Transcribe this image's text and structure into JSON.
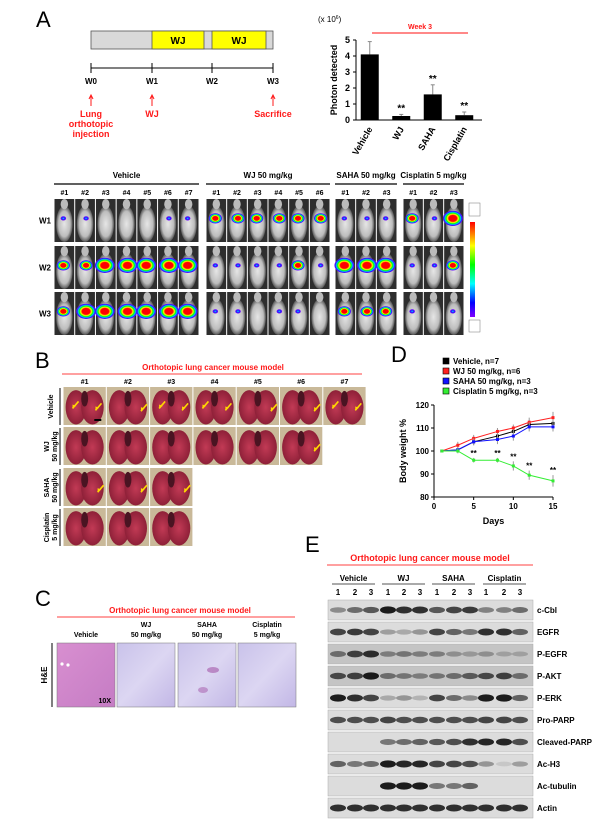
{
  "panel_labels": {
    "a": "A",
    "b": "B",
    "c": "C",
    "d": "D",
    "e": "E"
  },
  "panel_a": {
    "schedule": {
      "treatment_label": "WJ",
      "segments": [
        "WJ",
        "WJ"
      ]
    },
    "timeline": {
      "weeks": [
        "W0",
        "W1",
        "W2",
        "W3"
      ]
    },
    "events": [
      {
        "week": "W0",
        "label": "Lung\northotopic\ninjection"
      },
      {
        "week": "W1",
        "label": "WJ"
      },
      {
        "week": "W3",
        "label": "Sacrifice"
      }
    ],
    "imaging": {
      "groups": [
        {
          "name": "Vehicle",
          "mice": [
            "#1",
            "#2",
            "#3",
            "#4",
            "#5",
            "#6",
            "#7"
          ]
        },
        {
          "name": "WJ 50 mg/kg",
          "mice": [
            "#1",
            "#2",
            "#3",
            "#4",
            "#5",
            "#6"
          ]
        },
        {
          "name": "SAHA 50 mg/kg",
          "mice": [
            "#1",
            "#2",
            "#3"
          ]
        },
        {
          "name": "Cisplatin 5 mg/kg",
          "mice": [
            "#1",
            "#2",
            "#3"
          ]
        }
      ],
      "rows": [
        "W1",
        "W2",
        "W3"
      ],
      "signal_level_0_to_3": [
        [
          [
            1,
            1,
            0,
            0,
            0,
            1,
            1
          ],
          [
            2,
            2,
            2,
            2,
            2,
            2
          ],
          [
            1,
            1,
            1
          ],
          [
            2,
            1,
            3
          ]
        ],
        [
          [
            2,
            2,
            3,
            3,
            3,
            3,
            3
          ],
          [
            1,
            1,
            1,
            1,
            2,
            1
          ],
          [
            3,
            3,
            3
          ],
          [
            1,
            1,
            2
          ]
        ],
        [
          [
            2,
            3,
            3,
            3,
            3,
            3,
            3
          ],
          [
            1,
            1,
            0,
            1,
            1,
            0
          ],
          [
            2,
            2,
            2
          ],
          [
            1,
            0,
            1
          ]
        ]
      ],
      "colorbar_colors": [
        "#ff0000",
        "#ffff00",
        "#00ff00",
        "#00ffff",
        "#0000ff",
        "#8000ff"
      ]
    }
  },
  "chart_data": [
    {
      "type": "bar",
      "title": "Week 3",
      "unit_label": "(x 10",
      "unit_exp": "6",
      "unit_close": ")",
      "ylabel": "Photon detected",
      "xlabel": "",
      "categories": [
        "Vehicle",
        "WJ",
        "SAHA",
        "Cisplatin"
      ],
      "values": [
        4.1,
        0.25,
        1.6,
        0.3
      ],
      "errors": [
        0.8,
        0.1,
        0.6,
        0.2
      ],
      "significance": [
        "",
        "**",
        "**",
        "**"
      ],
      "ylim": [
        0,
        5
      ],
      "yticks": [
        "0",
        "1",
        "2",
        "3",
        "4",
        "5"
      ],
      "color": "#000000"
    },
    {
      "type": "line",
      "xlabel": "Days",
      "ylabel": "Body weight %",
      "xlim": [
        0,
        15
      ],
      "ylim": [
        80,
        120
      ],
      "xticks": [
        "0",
        "5",
        "10",
        "15"
      ],
      "yticks": [
        "80",
        "90",
        "100",
        "110",
        "120"
      ],
      "legend_position": "top-left",
      "x": [
        1,
        3,
        5,
        8,
        10,
        12,
        15
      ],
      "series": [
        {
          "name": "Vehicle, n=7",
          "color": "#000000",
          "values": [
            100,
            100.5,
            104,
            106.5,
            108.5,
            111.5,
            112
          ],
          "errors": [
            0,
            1,
            1.5,
            1.5,
            1.5,
            2,
            2
          ]
        },
        {
          "name": "WJ 50 mg/kg, n=6",
          "color": "#ff2020",
          "values": [
            100,
            102.5,
            105.5,
            108.5,
            110,
            112.5,
            114.5
          ],
          "errors": [
            0,
            1.5,
            1.5,
            1.5,
            1.5,
            2,
            2.5
          ]
        },
        {
          "name": "SAHA 50 mg/kg, n=3",
          "color": "#1010ff",
          "values": [
            100,
            100.5,
            104,
            105,
            106.5,
            110.5,
            110.5
          ],
          "errors": [
            0,
            1,
            1.5,
            2,
            2,
            2,
            2
          ]
        },
        {
          "name": "Cisplatin 5 mg/kg, n=3",
          "color": "#33ee33",
          "values": [
            100,
            100,
            96,
            96,
            93.5,
            89.5,
            87
          ],
          "errors": [
            0,
            1,
            1,
            1,
            2,
            2,
            2.5
          ]
        }
      ],
      "significance": {
        "series": "Cisplatin 5 mg/kg, n=3",
        "x": [
          5,
          8,
          10,
          12,
          15
        ],
        "label": "**"
      }
    }
  ],
  "panel_b": {
    "title": "Orthotopic lung cancer mouse model",
    "columns": [
      "#1",
      "#2",
      "#3",
      "#4",
      "#5",
      "#6",
      "#7"
    ],
    "rows": [
      {
        "label": "Vehicle",
        "count": 7,
        "arrows": [
          2,
          1,
          2,
          2,
          1,
          1,
          2
        ]
      },
      {
        "label": "WJ\n50 mg/kg",
        "count": 6,
        "arrows": [
          0,
          0,
          0,
          0,
          0,
          1
        ]
      },
      {
        "label": "SAHA\n50 mg/kg",
        "count": 3,
        "arrows": [
          1,
          1,
          1
        ]
      },
      {
        "label": "Cisplatin\n5 mg/kg",
        "count": 3,
        "arrows": [
          0,
          0,
          0
        ]
      }
    ]
  },
  "panel_c": {
    "title": "Orthotopic lung cancer mouse model",
    "stain_label": "H&E",
    "magnification": "10X",
    "columns": [
      "Vehicle",
      "WJ\n50 mg/kg",
      "SAHA\n50 mg/kg",
      "Cisplatin\n5 mg/kg"
    ]
  },
  "panel_e": {
    "title": "Orthotopic lung cancer mouse model",
    "groups": [
      "Vehicle",
      "WJ",
      "SAHA",
      "Cisplatin"
    ],
    "lanes": [
      "1",
      "2",
      "3"
    ],
    "blots": [
      {
        "label": "c-Cbl",
        "intensity": [
          0.4,
          0.55,
          0.65,
          0.95,
          0.85,
          0.85,
          0.65,
          0.75,
          0.8,
          0.45,
          0.45,
          0.55
        ]
      },
      {
        "label": "EGFR",
        "intensity": [
          0.75,
          0.8,
          0.75,
          0.3,
          0.25,
          0.35,
          0.75,
          0.6,
          0.5,
          0.85,
          0.85,
          0.6
        ]
      },
      {
        "label": "P-EGFR",
        "intensity": [
          0.5,
          0.75,
          0.85,
          0.4,
          0.45,
          0.4,
          0.4,
          0.3,
          0.25,
          0.3,
          0.2,
          0.2
        ]
      },
      {
        "label": "P-AKT",
        "intensity": [
          0.7,
          0.75,
          0.95,
          0.5,
          0.45,
          0.4,
          0.45,
          0.5,
          0.6,
          0.7,
          0.75,
          0.5
        ]
      },
      {
        "label": "P-ERK",
        "intensity": [
          0.95,
          0.85,
          0.75,
          0.25,
          0.35,
          0.2,
          0.75,
          0.55,
          0.4,
          0.95,
          0.95,
          0.6
        ]
      },
      {
        "label": "Pro-PARP",
        "intensity": [
          0.7,
          0.7,
          0.7,
          0.75,
          0.7,
          0.7,
          0.7,
          0.7,
          0.7,
          0.75,
          0.75,
          0.7
        ]
      },
      {
        "label": "Cleaved-PARP",
        "intensity": [
          0,
          0,
          0,
          0.5,
          0.55,
          0.6,
          0.65,
          0.7,
          0.85,
          0.9,
          0.9,
          0.7
        ]
      },
      {
        "label": "Ac-H3",
        "intensity": [
          0.6,
          0.5,
          0.55,
          0.95,
          0.9,
          0.9,
          0.75,
          0.75,
          0.7,
          0.35,
          0.1,
          0.3
        ]
      },
      {
        "label": "Ac-tubulin",
        "intensity": [
          0,
          0,
          0,
          0.95,
          0.95,
          0.95,
          0.5,
          0.5,
          0.6,
          0,
          0,
          0
        ]
      },
      {
        "label": "Actin",
        "intensity": [
          0.85,
          0.85,
          0.85,
          0.85,
          0.85,
          0.85,
          0.85,
          0.85,
          0.85,
          0.85,
          0.85,
          0.85
        ]
      }
    ]
  }
}
